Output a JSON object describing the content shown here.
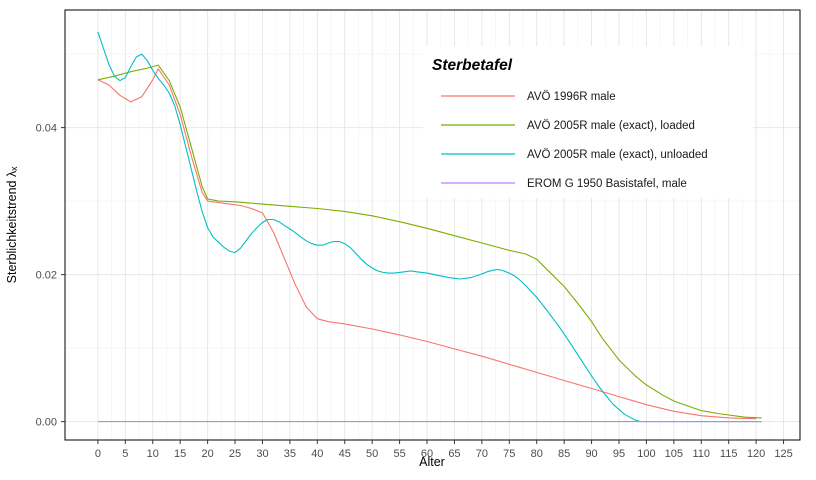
{
  "chart_data": {
    "type": "line",
    "title": "",
    "xlabel": "Alter",
    "ylabel": "Sterblichkeitstrend λₓ",
    "legend_title": "Sterbetafel",
    "legend_position": "inside-top-right",
    "grid": "major-and-minor",
    "xlim": [
      -6,
      128
    ],
    "ylim": [
      -0.0025,
      0.056
    ],
    "x_ticks": [
      0,
      5,
      10,
      15,
      20,
      25,
      30,
      35,
      40,
      45,
      50,
      55,
      60,
      65,
      70,
      75,
      80,
      85,
      90,
      95,
      100,
      105,
      110,
      115,
      120,
      125
    ],
    "y_ticks": [
      {
        "value": 0.0,
        "label": "0.00"
      },
      {
        "value": 0.02,
        "label": "0.02"
      },
      {
        "value": 0.04,
        "label": "0.04"
      }
    ],
    "y_minor_ticks": [
      0.01,
      0.03,
      0.05
    ],
    "style": {
      "panel_border": "#000000",
      "grid_major_color": "#e7e7e7",
      "grid_minor_color": "#f3f3f3",
      "tick_mark_color": "#333333",
      "background": "#ffffff"
    },
    "series": [
      {
        "name": "AVÖ 1996R male",
        "color": "#F8766D",
        "points": [
          [
            0,
            0.0465
          ],
          [
            2,
            0.0458
          ],
          [
            4,
            0.0444
          ],
          [
            6,
            0.0435
          ],
          [
            8,
            0.0442
          ],
          [
            10,
            0.0465
          ],
          [
            11,
            0.048
          ],
          [
            13,
            0.0458
          ],
          [
            15,
            0.0418
          ],
          [
            17,
            0.0362
          ],
          [
            19,
            0.0312
          ],
          [
            20,
            0.03
          ],
          [
            22,
            0.0298
          ],
          [
            24,
            0.0296
          ],
          [
            26,
            0.0294
          ],
          [
            28,
            0.029
          ],
          [
            30,
            0.0284
          ],
          [
            32,
            0.0258
          ],
          [
            34,
            0.0222
          ],
          [
            36,
            0.0186
          ],
          [
            38,
            0.0156
          ],
          [
            40,
            0.014
          ],
          [
            42,
            0.0136
          ],
          [
            45,
            0.0133
          ],
          [
            50,
            0.0126
          ],
          [
            55,
            0.0118
          ],
          [
            60,
            0.0109
          ],
          [
            65,
            0.0099
          ],
          [
            70,
            0.0089
          ],
          [
            75,
            0.0078
          ],
          [
            80,
            0.0067
          ],
          [
            85,
            0.0056
          ],
          [
            90,
            0.0045
          ],
          [
            95,
            0.0034
          ],
          [
            100,
            0.0023
          ],
          [
            105,
            0.0014
          ],
          [
            110,
            0.0008
          ],
          [
            115,
            0.0005
          ],
          [
            120,
            0.0004
          ]
        ]
      },
      {
        "name": "AVÖ 2005R male (exact), loaded",
        "color": "#7CAE00",
        "points": [
          [
            0,
            0.0465
          ],
          [
            3,
            0.047
          ],
          [
            6,
            0.0476
          ],
          [
            9,
            0.0481
          ],
          [
            11,
            0.0485
          ],
          [
            13,
            0.0464
          ],
          [
            15,
            0.0428
          ],
          [
            17,
            0.0374
          ],
          [
            19,
            0.032
          ],
          [
            20,
            0.0303
          ],
          [
            22,
            0.03
          ],
          [
            25,
            0.0299
          ],
          [
            30,
            0.0296
          ],
          [
            35,
            0.0293
          ],
          [
            40,
            0.029
          ],
          [
            45,
            0.0286
          ],
          [
            50,
            0.028
          ],
          [
            55,
            0.0272
          ],
          [
            60,
            0.0263
          ],
          [
            65,
            0.0253
          ],
          [
            70,
            0.0243
          ],
          [
            75,
            0.0233
          ],
          [
            78,
            0.0228
          ],
          [
            80,
            0.0221
          ],
          [
            82,
            0.0206
          ],
          [
            85,
            0.0184
          ],
          [
            88,
            0.0156
          ],
          [
            90,
            0.0136
          ],
          [
            92,
            0.0113
          ],
          [
            95,
            0.0084
          ],
          [
            98,
            0.0062
          ],
          [
            100,
            0.005
          ],
          [
            103,
            0.0036
          ],
          [
            105,
            0.0028
          ],
          [
            108,
            0.002
          ],
          [
            110,
            0.0015
          ],
          [
            113,
            0.0011
          ],
          [
            115,
            0.0009
          ],
          [
            118,
            0.0006
          ],
          [
            121,
            0.0005
          ]
        ]
      },
      {
        "name": "AVÖ 2005R male (exact), unloaded",
        "color": "#00BFC4",
        "points": [
          [
            0,
            0.053
          ],
          [
            1,
            0.0508
          ],
          [
            2,
            0.0486
          ],
          [
            3,
            0.047
          ],
          [
            4,
            0.0464
          ],
          [
            5,
            0.0468
          ],
          [
            6,
            0.0483
          ],
          [
            7,
            0.0496
          ],
          [
            8,
            0.05
          ],
          [
            9,
            0.0491
          ],
          [
            10,
            0.0478
          ],
          [
            11,
            0.0467
          ],
          [
            12,
            0.0458
          ],
          [
            13,
            0.0447
          ],
          [
            14,
            0.043
          ],
          [
            15,
            0.0404
          ],
          [
            16,
            0.0374
          ],
          [
            17,
            0.0344
          ],
          [
            18,
            0.0314
          ],
          [
            19,
            0.0286
          ],
          [
            20,
            0.0264
          ],
          [
            21,
            0.0251
          ],
          [
            22,
            0.0244
          ],
          [
            23,
            0.0237
          ],
          [
            24,
            0.0232
          ],
          [
            25,
            0.023
          ],
          [
            26,
            0.0236
          ],
          [
            27,
            0.0246
          ],
          [
            28,
            0.0256
          ],
          [
            29,
            0.0264
          ],
          [
            30,
            0.0271
          ],
          [
            31,
            0.0275
          ],
          [
            32,
            0.0275
          ],
          [
            33,
            0.0272
          ],
          [
            34,
            0.0267
          ],
          [
            35,
            0.0262
          ],
          [
            36,
            0.0257
          ],
          [
            37,
            0.0251
          ],
          [
            38,
            0.0246
          ],
          [
            39,
            0.0242
          ],
          [
            40,
            0.024
          ],
          [
            41,
            0.024
          ],
          [
            42,
            0.0243
          ],
          [
            43,
            0.0245
          ],
          [
            44,
            0.0245
          ],
          [
            45,
            0.0242
          ],
          [
            46,
            0.0237
          ],
          [
            47,
            0.0229
          ],
          [
            48,
            0.0221
          ],
          [
            49,
            0.0214
          ],
          [
            50,
            0.0209
          ],
          [
            51,
            0.0205
          ],
          [
            52,
            0.0203
          ],
          [
            53,
            0.0202
          ],
          [
            54,
            0.0202
          ],
          [
            55,
            0.0203
          ],
          [
            56,
            0.0204
          ],
          [
            57,
            0.0205
          ],
          [
            58,
            0.0204
          ],
          [
            59,
            0.0203
          ],
          [
            60,
            0.0202
          ],
          [
            62,
            0.0199
          ],
          [
            64,
            0.0196
          ],
          [
            65,
            0.0195
          ],
          [
            66,
            0.0194
          ],
          [
            68,
            0.0196
          ],
          [
            70,
            0.0201
          ],
          [
            71,
            0.0204
          ],
          [
            72,
            0.0206
          ],
          [
            73,
            0.0207
          ],
          [
            74,
            0.0205
          ],
          [
            75,
            0.0202
          ],
          [
            76,
            0.0198
          ],
          [
            77,
            0.0192
          ],
          [
            78,
            0.0185
          ],
          [
            80,
            0.0169
          ],
          [
            82,
            0.015
          ],
          [
            84,
            0.013
          ],
          [
            86,
            0.0108
          ],
          [
            88,
            0.0085
          ],
          [
            90,
            0.0062
          ],
          [
            92,
            0.0041
          ],
          [
            94,
            0.0023
          ],
          [
            96,
            0.001
          ],
          [
            98,
            0.0002
          ],
          [
            99,
            0.0
          ],
          [
            102,
            0.0
          ],
          [
            106,
            0.0
          ],
          [
            110,
            0.0
          ],
          [
            115,
            0.0
          ],
          [
            121,
            0.0
          ]
        ]
      },
      {
        "name": "EROM G 1950 Basistafel, male",
        "color": "#C77CFF",
        "points": [
          [
            0,
            0.0
          ],
          [
            121,
            0.0
          ]
        ]
      }
    ]
  }
}
